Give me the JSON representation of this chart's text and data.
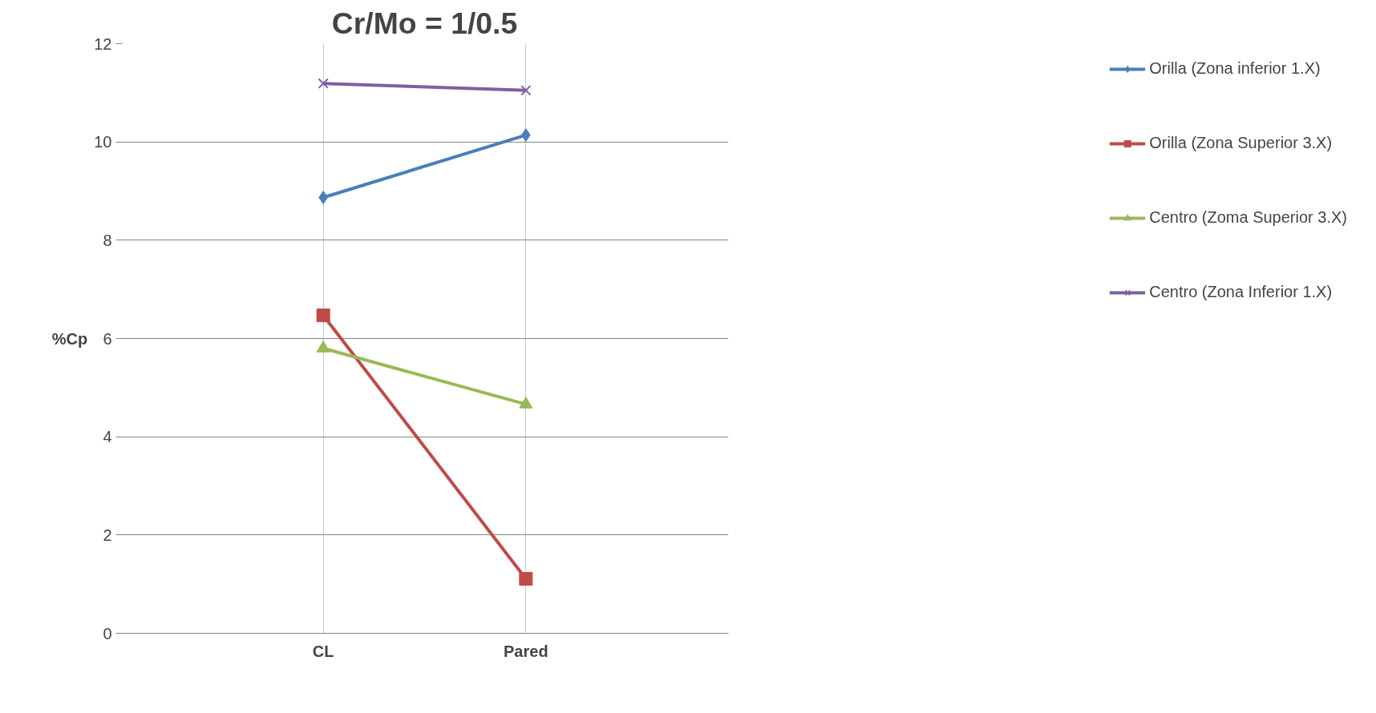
{
  "chart_data": {
    "type": "line",
    "title": "Cr/Mo = 1/0.5",
    "ylabel": "%Cp",
    "categories": [
      "CL",
      "Pared"
    ],
    "ylim": [
      0,
      12
    ],
    "yticks": [
      0,
      2,
      4,
      6,
      8,
      10,
      12
    ],
    "grid": true,
    "legend": "right",
    "series": [
      {
        "name": "Orilla (Zona inferior 1.X)",
        "color": "#4a7ebb",
        "marker": "diamond",
        "values": [
          8.87,
          10.14
        ]
      },
      {
        "name": "Orilla (Zona Superior 3.X)",
        "color": "#be4b48",
        "marker": "square",
        "values": [
          6.47,
          1.11
        ]
      },
      {
        "name": "Centro (Zoma Superior 3.X)",
        "color": "#98b954",
        "marker": "triangle",
        "values": [
          5.8,
          4.66
        ]
      },
      {
        "name": "Centro (Zona Inferior 1.X)",
        "color": "#7d60a0",
        "marker": "cross",
        "values": [
          11.19,
          11.05
        ]
      }
    ]
  }
}
